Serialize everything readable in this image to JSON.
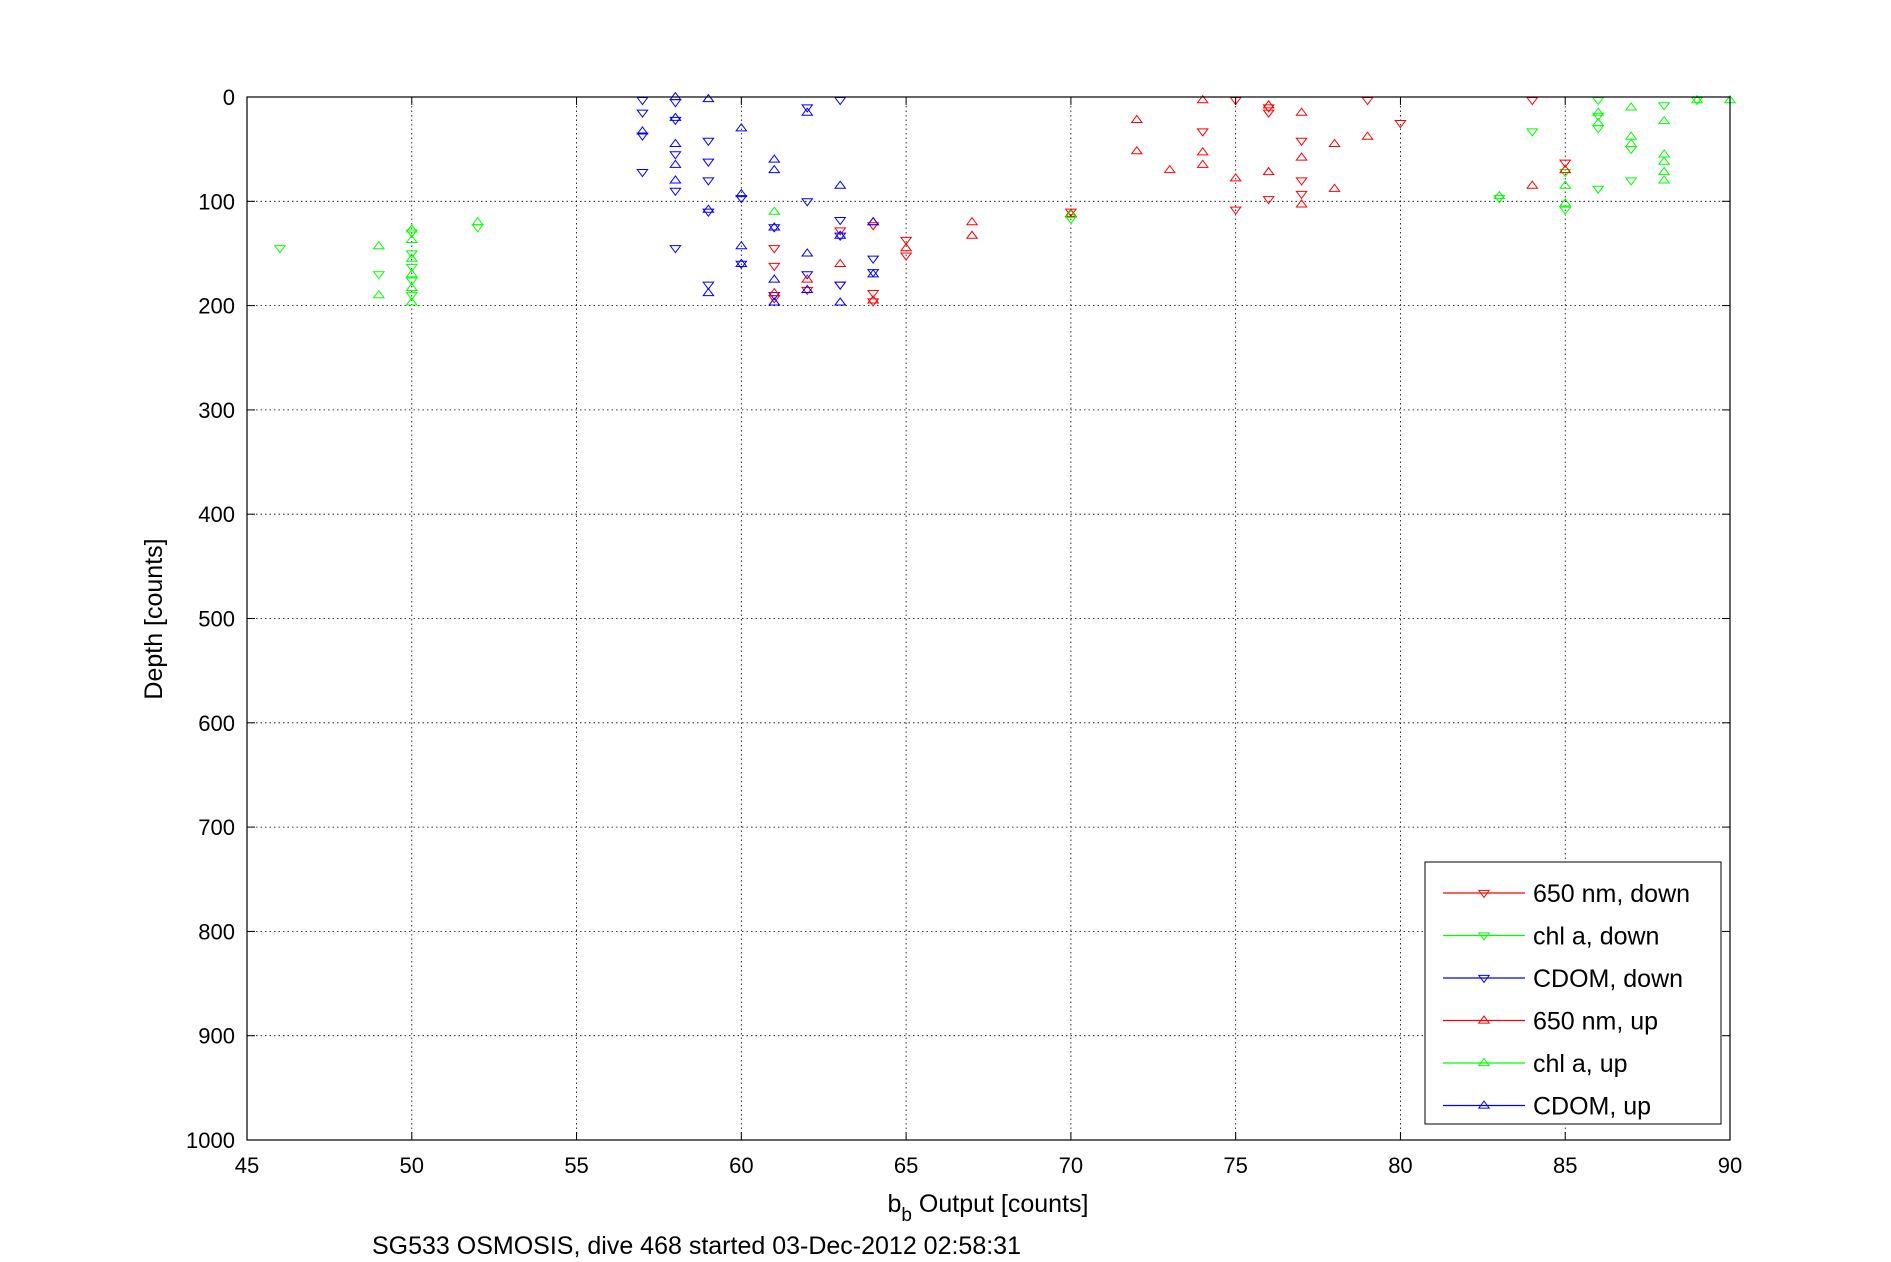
{
  "chart_data": {
    "type": "scatter",
    "title": "",
    "xlabel": {
      "base": "b",
      "sub": "b",
      "rest": " Output [counts]"
    },
    "ylabel": "Depth [counts]",
    "caption": "SG533 OSMOSIS, dive 468 started 03-Dec-2012 02:58:31",
    "xlim": [
      45,
      90
    ],
    "ylim": [
      0,
      1000
    ],
    "y_reversed": true,
    "xticks": [
      "45",
      "50",
      "55",
      "60",
      "65",
      "70",
      "75",
      "80",
      "85",
      "90"
    ],
    "yticks": [
      "0",
      "100",
      "200",
      "300",
      "400",
      "500",
      "600",
      "700",
      "800",
      "900",
      "1000"
    ],
    "grid": true,
    "legend_position": "bottom-right",
    "series": [
      {
        "name": "650 nm, down",
        "color": "#ff0000",
        "marker": "triangle-down",
        "points": [
          [
            74,
            33
          ],
          [
            75,
            3
          ],
          [
            76,
            10
          ],
          [
            76,
            15
          ],
          [
            77,
            42
          ],
          [
            77,
            80
          ],
          [
            77,
            93
          ],
          [
            79,
            3
          ],
          [
            80,
            25
          ],
          [
            84,
            3
          ],
          [
            85,
            63
          ],
          [
            76,
            98
          ],
          [
            75,
            108
          ],
          [
            63,
            128
          ],
          [
            64,
            123
          ],
          [
            63,
            180
          ],
          [
            64,
            188
          ],
          [
            64,
            196
          ],
          [
            65,
            137
          ],
          [
            65,
            152
          ],
          [
            62,
            185
          ],
          [
            61,
            145
          ],
          [
            61,
            162
          ],
          [
            61,
            193
          ],
          [
            70,
            110
          ]
        ]
      },
      {
        "name": "chl a, down",
        "color": "#00ff00",
        "marker": "triangle-down",
        "points": [
          [
            46,
            145
          ],
          [
            49,
            170
          ],
          [
            50,
            130
          ],
          [
            50,
            150
          ],
          [
            50,
            163
          ],
          [
            50,
            176
          ],
          [
            50,
            190
          ],
          [
            52,
            125
          ],
          [
            83,
            97
          ],
          [
            84,
            33
          ],
          [
            85,
            72
          ],
          [
            85,
            108
          ],
          [
            86,
            3
          ],
          [
            86,
            18
          ],
          [
            86,
            30
          ],
          [
            86,
            88
          ],
          [
            88,
            8
          ],
          [
            89,
            3
          ],
          [
            87,
            50
          ],
          [
            87,
            80
          ],
          [
            70,
            117
          ]
        ]
      },
      {
        "name": "CDOM, down",
        "color": "#0000ff",
        "marker": "triangle-down",
        "points": [
          [
            57,
            3
          ],
          [
            57,
            15
          ],
          [
            57,
            37
          ],
          [
            57,
            72
          ],
          [
            58,
            5
          ],
          [
            58,
            22
          ],
          [
            58,
            55
          ],
          [
            58,
            90
          ],
          [
            58,
            145
          ],
          [
            59,
            42
          ],
          [
            59,
            62
          ],
          [
            59,
            80
          ],
          [
            59,
            110
          ],
          [
            59,
            180
          ],
          [
            60,
            97
          ],
          [
            60,
            160
          ],
          [
            61,
            125
          ],
          [
            61,
            190
          ],
          [
            62,
            10
          ],
          [
            62,
            100
          ],
          [
            62,
            170
          ],
          [
            63,
            3
          ],
          [
            63,
            118
          ],
          [
            63,
            133
          ],
          [
            63,
            180
          ],
          [
            64,
            155
          ],
          [
            64,
            168
          ]
        ]
      },
      {
        "name": "650 nm, up",
        "color": "#ff0000",
        "marker": "triangle-up",
        "points": [
          [
            72,
            22
          ],
          [
            72,
            52
          ],
          [
            73,
            70
          ],
          [
            74,
            3
          ],
          [
            74,
            53
          ],
          [
            74,
            65
          ],
          [
            75,
            78
          ],
          [
            76,
            8
          ],
          [
            76,
            72
          ],
          [
            77,
            15
          ],
          [
            77,
            58
          ],
          [
            77,
            103
          ],
          [
            78,
            45
          ],
          [
            78,
            88
          ],
          [
            79,
            38
          ],
          [
            84,
            85
          ],
          [
            85,
            70
          ],
          [
            67,
            120
          ],
          [
            67,
            133
          ],
          [
            65,
            145
          ],
          [
            64,
            120
          ],
          [
            64,
            195
          ],
          [
            63,
            160
          ],
          [
            62,
            175
          ],
          [
            61,
            188
          ],
          [
            70,
            112
          ]
        ]
      },
      {
        "name": "chl a, up",
        "color": "#00ff00",
        "marker": "triangle-up",
        "points": [
          [
            49,
            143
          ],
          [
            49,
            190
          ],
          [
            50,
            127
          ],
          [
            50,
            137
          ],
          [
            50,
            155
          ],
          [
            50,
            170
          ],
          [
            50,
            183
          ],
          [
            50,
            197
          ],
          [
            52,
            120
          ],
          [
            61,
            110
          ],
          [
            83,
            95
          ],
          [
            85,
            85
          ],
          [
            85,
            102
          ],
          [
            86,
            15
          ],
          [
            86,
            25
          ],
          [
            87,
            10
          ],
          [
            87,
            38
          ],
          [
            87,
            45
          ],
          [
            88,
            23
          ],
          [
            88,
            55
          ],
          [
            88,
            62
          ],
          [
            88,
            72
          ],
          [
            88,
            80
          ],
          [
            89,
            3
          ],
          [
            90,
            3
          ],
          [
            70,
            113
          ]
        ]
      },
      {
        "name": "CDOM, up",
        "color": "#0000ff",
        "marker": "triangle-up",
        "points": [
          [
            57,
            33
          ],
          [
            58,
            0
          ],
          [
            58,
            20
          ],
          [
            58,
            45
          ],
          [
            58,
            65
          ],
          [
            58,
            80
          ],
          [
            59,
            2
          ],
          [
            59,
            108
          ],
          [
            59,
            188
          ],
          [
            60,
            30
          ],
          [
            60,
            93
          ],
          [
            60,
            143
          ],
          [
            60,
            160
          ],
          [
            61,
            60
          ],
          [
            61,
            70
          ],
          [
            61,
            125
          ],
          [
            61,
            175
          ],
          [
            61,
            197
          ],
          [
            62,
            15
          ],
          [
            62,
            150
          ],
          [
            62,
            185
          ],
          [
            63,
            85
          ],
          [
            63,
            133
          ],
          [
            63,
            197
          ],
          [
            64,
            120
          ],
          [
            64,
            170
          ]
        ]
      }
    ]
  }
}
